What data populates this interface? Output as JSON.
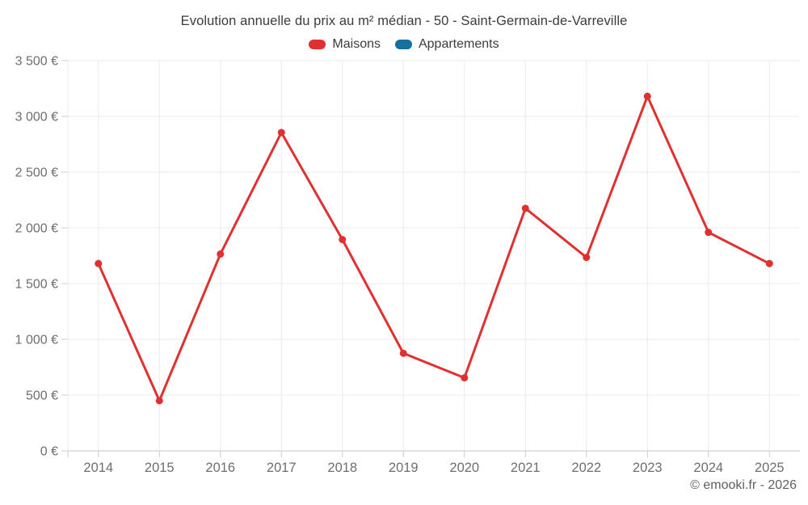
{
  "title": "Evolution annuelle du prix au m² médian - 50 - Saint-Germain-de-Varreville",
  "footer": "© emooki.fr - 2026",
  "colors": {
    "maisons": "#e03131",
    "appartements": "#176f9c",
    "grid_line": "#ebebeb",
    "zero_line": "#c6c6c6",
    "tick_mark": "#cccccc",
    "axis_text": "#6e6e6e",
    "title_text": "#3c3c3c"
  },
  "legend": {
    "items": [
      {
        "label": "Maisons",
        "color": "#e03131"
      },
      {
        "label": "Appartements",
        "color": "#176f9c"
      }
    ]
  },
  "chart_data": {
    "type": "line",
    "title": "Evolution annuelle du prix au m² médian - 50 - Saint-Germain-de-Varreville",
    "categories": [
      "2014",
      "2015",
      "2016",
      "2017",
      "2018",
      "2019",
      "2020",
      "2021",
      "2022",
      "2023",
      "2024",
      "2025"
    ],
    "series": [
      {
        "name": "Maisons",
        "color": "#e03131",
        "values": [
          1680,
          450,
          1765,
          2855,
          1895,
          875,
          655,
          2175,
          1735,
          3180,
          1960,
          1680
        ]
      },
      {
        "name": "Appartements",
        "color": "#176f9c",
        "values": []
      }
    ],
    "xlabel": "",
    "ylabel": "",
    "ylim": [
      0,
      3500
    ],
    "ytick_values": [
      0,
      500,
      1000,
      1500,
      2000,
      2500,
      3000,
      3500
    ],
    "ytick_labels": [
      "0 €",
      "500 €",
      "1 000 €",
      "1 500 €",
      "2 000 €",
      "2 500 €",
      "3 000 €",
      "3 500 €"
    ],
    "grid": true,
    "legend_position": "top"
  }
}
